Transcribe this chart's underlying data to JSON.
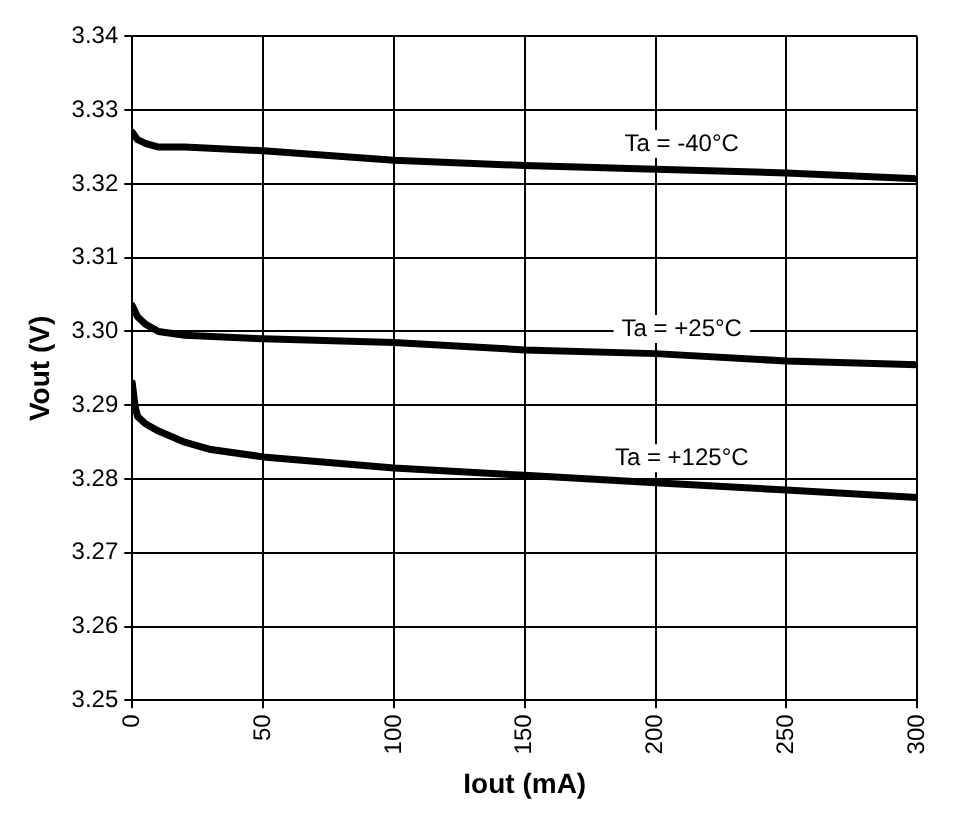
{
  "chart_data": {
    "type": "line",
    "xlabel": "Iout (mA)",
    "ylabel": "Vout (V)",
    "xlim": [
      0,
      300
    ],
    "xticks": [
      0,
      50,
      100,
      150,
      200,
      250,
      300
    ],
    "ylim": [
      3.25,
      3.34
    ],
    "yticks": [
      3.25,
      3.26,
      3.27,
      3.28,
      3.29,
      {
        "value": 3.3,
        "label": "3.30"
      },
      3.31,
      3.32,
      3.33,
      3.34
    ],
    "grid": true,
    "marker": "none",
    "line_style": "solid",
    "series": [
      {
        "name": "Ta = -40°C",
        "color": "#000000",
        "x": [
          0,
          2,
          5,
          10,
          20,
          50,
          100,
          150,
          200,
          250,
          300
        ],
        "values": [
          3.327,
          3.326,
          3.3255,
          3.325,
          3.325,
          3.3245,
          3.3232,
          3.3225,
          3.322,
          3.3215,
          3.3207
        ]
      },
      {
        "name": "Ta = +25°C",
        "color": "#000000",
        "x": [
          0,
          2,
          5,
          10,
          20,
          50,
          100,
          150,
          200,
          250,
          300
        ],
        "values": [
          3.3035,
          3.302,
          3.301,
          3.3,
          3.2995,
          3.299,
          3.2985,
          3.2975,
          3.297,
          3.296,
          3.2955
        ]
      },
      {
        "name": "Ta = +125°C",
        "color": "#000000",
        "x": [
          0,
          1,
          2,
          5,
          10,
          20,
          30,
          50,
          100,
          150,
          200,
          250,
          300
        ],
        "values": [
          3.293,
          3.29,
          3.2885,
          3.2875,
          3.2865,
          3.285,
          3.284,
          3.283,
          3.2815,
          3.2805,
          3.2795,
          3.2785,
          3.2775
        ]
      }
    ]
  }
}
